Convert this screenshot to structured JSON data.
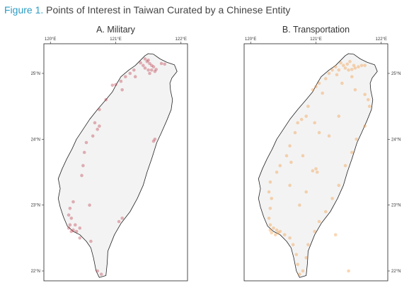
{
  "figure": {
    "label": "Figure 1.",
    "title": "Points of Interest in Taiwan Curated by a Chinese Entity"
  },
  "colors": {
    "figure_label": "#2b9cc4",
    "military_points": "#b8283a",
    "transportation_points": "#f28c28",
    "land": "#f3f3f3"
  },
  "chart_data": [
    {
      "type": "scatter",
      "title": "A. Military",
      "x_ticks": [
        "120°E",
        "121°E",
        "122°E"
      ],
      "y_ticks": [
        "25°N",
        "24°N",
        "23°N",
        "22°N"
      ],
      "xlim": [
        119.9,
        122.1
      ],
      "ylim": [
        21.85,
        25.45
      ],
      "color": "#b8283a",
      "points": [
        [
          121.45,
          25.22
        ],
        [
          121.48,
          25.18
        ],
        [
          121.52,
          25.15
        ],
        [
          121.55,
          25.12
        ],
        [
          121.58,
          25.1
        ],
        [
          121.55,
          25.05
        ],
        [
          121.5,
          25.05
        ],
        [
          121.45,
          25.08
        ],
        [
          121.6,
          25.03
        ],
        [
          121.62,
          25.06
        ],
        [
          121.52,
          25.0
        ],
        [
          121.42,
          25.12
        ],
        [
          121.38,
          25.16
        ],
        [
          121.7,
          25.15
        ],
        [
          121.75,
          25.14
        ],
        [
          121.5,
          25.2
        ],
        [
          121.28,
          25.05
        ],
        [
          121.22,
          25.0
        ],
        [
          121.15,
          24.95
        ],
        [
          121.08,
          24.88
        ],
        [
          121.0,
          24.83
        ],
        [
          120.95,
          24.82
        ],
        [
          121.3,
          24.95
        ],
        [
          121.1,
          24.75
        ],
        [
          120.85,
          24.6
        ],
        [
          120.75,
          24.45
        ],
        [
          120.68,
          24.25
        ],
        [
          120.72,
          24.15
        ],
        [
          120.65,
          24.05
        ],
        [
          120.55,
          23.95
        ],
        [
          120.52,
          23.8
        ],
        [
          120.5,
          23.6
        ],
        [
          120.48,
          23.45
        ],
        [
          120.35,
          23.05
        ],
        [
          120.3,
          22.95
        ],
        [
          120.28,
          22.85
        ],
        [
          120.32,
          22.8
        ],
        [
          120.3,
          22.7
        ],
        [
          120.28,
          22.65
        ],
        [
          120.32,
          22.6
        ],
        [
          120.35,
          22.62
        ],
        [
          120.4,
          22.6
        ],
        [
          120.45,
          22.65
        ],
        [
          120.38,
          22.7
        ],
        [
          120.45,
          22.5
        ],
        [
          120.62,
          22.45
        ],
        [
          121.05,
          22.75
        ],
        [
          121.1,
          22.8
        ],
        [
          121.6,
          24.0
        ],
        [
          121.58,
          23.97
        ],
        [
          120.72,
          22.0
        ],
        [
          120.78,
          21.95
        ],
        [
          120.75,
          24.2
        ],
        [
          120.6,
          23.0
        ]
      ]
    },
    {
      "type": "scatter",
      "title": "B. Transportation",
      "x_ticks": [
        "120°E",
        "121°E",
        "122°E"
      ],
      "y_ticks": [
        "25°N",
        "24°N",
        "23°N",
        "22°N"
      ],
      "xlim": [
        119.9,
        122.1
      ],
      "ylim": [
        21.85,
        25.45
      ],
      "color": "#f28c28",
      "points": [
        [
          121.38,
          25.16
        ],
        [
          121.42,
          25.12
        ],
        [
          121.45,
          25.08
        ],
        [
          121.5,
          25.05
        ],
        [
          121.55,
          25.06
        ],
        [
          121.6,
          25.08
        ],
        [
          121.65,
          25.1
        ],
        [
          121.7,
          25.12
        ],
        [
          121.75,
          25.12
        ],
        [
          121.52,
          25.18
        ],
        [
          121.48,
          25.14
        ],
        [
          121.58,
          25.12
        ],
        [
          121.3,
          25.1
        ],
        [
          121.25,
          25.05
        ],
        [
          121.2,
          25.0
        ],
        [
          121.35,
          25.05
        ],
        [
          121.32,
          24.98
        ],
        [
          121.15,
          24.92
        ],
        [
          121.05,
          24.85
        ],
        [
          121.0,
          24.8
        ],
        [
          120.95,
          24.75
        ],
        [
          121.1,
          24.7
        ],
        [
          121.4,
          24.85
        ],
        [
          121.55,
          24.95
        ],
        [
          121.6,
          24.75
        ],
        [
          121.75,
          24.68
        ],
        [
          121.8,
          24.6
        ],
        [
          121.82,
          24.5
        ],
        [
          121.75,
          24.2
        ],
        [
          121.62,
          24.0
        ],
        [
          121.55,
          23.8
        ],
        [
          121.45,
          23.6
        ],
        [
          121.35,
          23.3
        ],
        [
          121.25,
          23.1
        ],
        [
          121.15,
          22.9
        ],
        [
          121.05,
          22.75
        ],
        [
          120.98,
          22.6
        ],
        [
          120.88,
          22.4
        ],
        [
          120.85,
          22.2
        ],
        [
          120.8,
          22.0
        ],
        [
          120.75,
          21.95
        ],
        [
          120.72,
          22.1
        ],
        [
          120.7,
          22.25
        ],
        [
          120.65,
          22.4
        ],
        [
          120.6,
          22.5
        ],
        [
          120.52,
          22.55
        ],
        [
          120.45,
          22.6
        ],
        [
          120.4,
          22.62
        ],
        [
          120.35,
          22.65
        ],
        [
          120.3,
          22.62
        ],
        [
          120.32,
          22.58
        ],
        [
          120.38,
          22.55
        ],
        [
          120.42,
          22.58
        ],
        [
          120.3,
          22.7
        ],
        [
          120.28,
          22.8
        ],
        [
          120.3,
          22.95
        ],
        [
          120.32,
          23.1
        ],
        [
          120.28,
          23.2
        ],
        [
          120.3,
          23.35
        ],
        [
          120.4,
          23.5
        ],
        [
          120.45,
          23.6
        ],
        [
          120.55,
          23.75
        ],
        [
          120.6,
          23.9
        ],
        [
          120.68,
          24.1
        ],
        [
          120.78,
          24.3
        ],
        [
          120.88,
          24.5
        ],
        [
          120.72,
          24.25
        ],
        [
          120.85,
          24.35
        ],
        [
          120.98,
          24.25
        ],
        [
          121.05,
          24.1
        ],
        [
          121.2,
          24.05
        ],
        [
          121.0,
          23.55
        ],
        [
          120.95,
          23.52
        ],
        [
          121.02,
          23.5
        ],
        [
          120.85,
          23.2
        ],
        [
          120.75,
          23.0
        ],
        [
          120.6,
          23.3
        ],
        [
          121.3,
          22.55
        ],
        [
          121.5,
          22.0
        ],
        [
          120.62,
          23.65
        ],
        [
          120.8,
          23.75
        ],
        [
          121.35,
          24.35
        ]
      ]
    }
  ]
}
